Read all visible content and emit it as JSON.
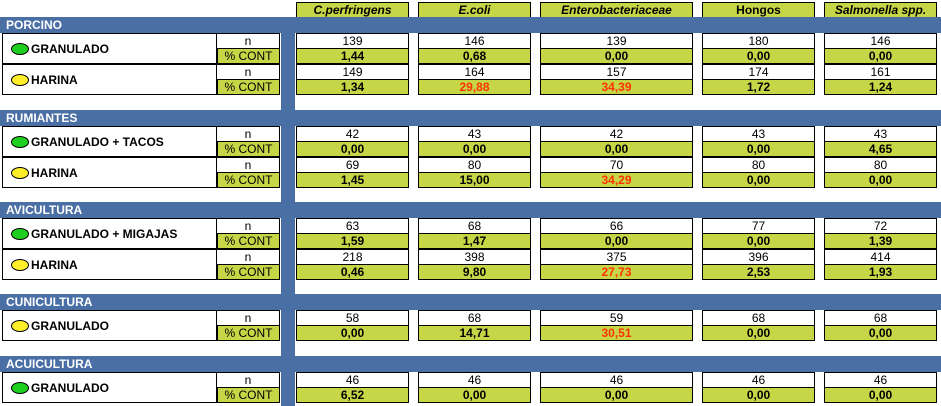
{
  "columns": [
    "C.perfringens",
    "E.coli",
    "Enterobacteriaceae",
    "Hongos",
    "Salmonella spp."
  ],
  "labels": {
    "n": "n",
    "pct": "% CONT"
  },
  "colors": {
    "header_green": "#c6d647",
    "section_blue": "#4a6fa5",
    "highlight_red": "#ff3300",
    "dot_green": "#1fcf1f",
    "dot_yellow": "#ffef2a"
  },
  "sections": [
    {
      "title": "PORCINO",
      "rows": [
        {
          "label": "GRANULADO",
          "dot": "green",
          "n": [
            "139",
            "146",
            "139",
            "180",
            "146"
          ],
          "pct": [
            "1,44",
            "0,68",
            "0,00",
            "0,00",
            "0,00"
          ],
          "highlight": []
        },
        {
          "label": "HARINA",
          "dot": "yellow",
          "n": [
            "149",
            "164",
            "157",
            "174",
            "161"
          ],
          "pct": [
            "1,34",
            "29,88",
            "34,39",
            "1,72",
            "1,24"
          ],
          "highlight": [
            1,
            2
          ]
        }
      ]
    },
    {
      "title": "RUMIANTES",
      "rows": [
        {
          "label": "GRANULADO + TACOS",
          "dot": "green",
          "n": [
            "42",
            "43",
            "42",
            "43",
            "43"
          ],
          "pct": [
            "0,00",
            "0,00",
            "0,00",
            "0,00",
            "4,65"
          ],
          "highlight": []
        },
        {
          "label": "HARINA",
          "dot": "yellow",
          "n": [
            "69",
            "80",
            "70",
            "80",
            "80"
          ],
          "pct": [
            "1,45",
            "15,00",
            "34,29",
            "0,00",
            "0,00"
          ],
          "highlight": [
            2
          ]
        }
      ]
    },
    {
      "title": "AVICULTURA",
      "rows": [
        {
          "label": "GRANULADO + MIGAJAS",
          "dot": "green",
          "n": [
            "63",
            "68",
            "66",
            "77",
            "72"
          ],
          "pct": [
            "1,59",
            "1,47",
            "0,00",
            "0,00",
            "1,39"
          ],
          "highlight": []
        },
        {
          "label": "HARINA",
          "dot": "yellow",
          "n": [
            "218",
            "398",
            "375",
            "396",
            "414"
          ],
          "pct": [
            "0,46",
            "9,80",
            "27,73",
            "2,53",
            "1,93"
          ],
          "highlight": [
            2
          ]
        }
      ]
    },
    {
      "title": "CUNICULTURA",
      "rows": [
        {
          "label": "GRANULADO",
          "dot": "yellow",
          "n": [
            "58",
            "68",
            "59",
            "68",
            "68"
          ],
          "pct": [
            "0,00",
            "14,71",
            "30,51",
            "0,00",
            "0,00"
          ],
          "highlight": [
            2
          ]
        }
      ]
    },
    {
      "title": "ACUICULTURA",
      "rows": [
        {
          "label": "GRANULADO",
          "dot": "green",
          "n": [
            "46",
            "46",
            "46",
            "46",
            "46"
          ],
          "pct": [
            "6,52",
            "0,00",
            "0,00",
            "0,00",
            "0,00"
          ],
          "highlight": []
        }
      ]
    }
  ]
}
